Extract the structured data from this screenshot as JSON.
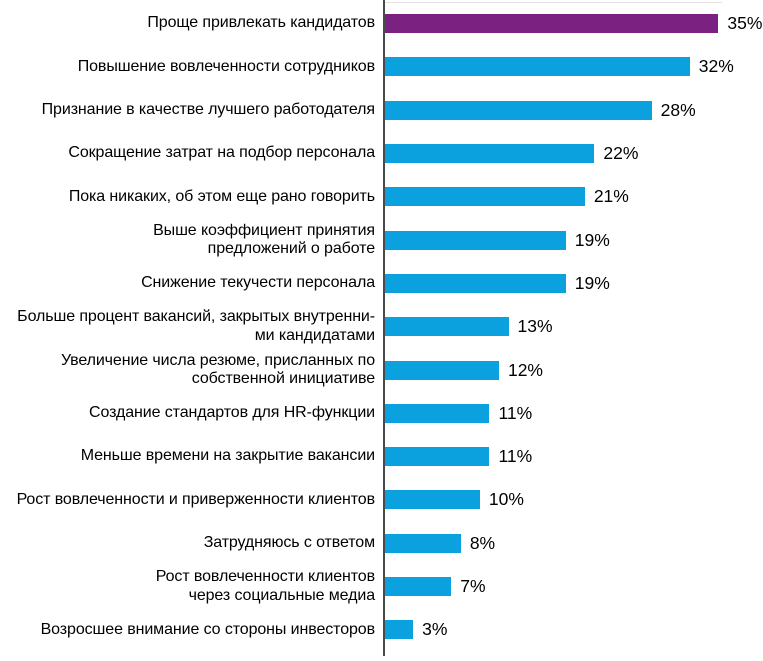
{
  "chart_data": {
    "type": "bar",
    "orientation": "horizontal",
    "title": "",
    "xlabel": "",
    "ylabel": "",
    "grid": false,
    "legend": false,
    "xlim": [
      0,
      36.6
    ],
    "highlight_index": 0,
    "colors": {
      "highlight_bar": "#7B2182",
      "default_bar": "#0AA1DE",
      "axis": "#4A4A4A",
      "text": "#000000",
      "background": "#FFFFFF"
    },
    "categories": [
      "Проще привлекать кандидатов",
      "Повышение вовлеченности сотрудников",
      "Признание в качестве лучшего работодателя",
      "Сокращение затрат на подбор персонала",
      "Пока никаких, об этом еще рано говорить",
      "Выше коэффициент принятия\nпредложений о работе",
      "Снижение текучести персонала",
      "Больше процент вакансий, закрытых внутренни-\nми кандидатами",
      "Увеличение числа резюме, присланных по\nсобственной инициативе",
      "Создание стандартов для HR-функции",
      "Меньше времени на закрытие вакансии",
      "Рост вовлеченности и приверженности клиентов",
      "Затрудняюсь с ответом",
      "Рост вовлеченности клиентов\nчерез социальные медиа",
      "Возросшее внимание со стороны инвесторов"
    ],
    "values": [
      35,
      32,
      28,
      22,
      21,
      19,
      19,
      13,
      12,
      11,
      11,
      10,
      8,
      7,
      3
    ],
    "value_labels": [
      "35%",
      "32%",
      "28%",
      "22%",
      "21%",
      "19%",
      "19%",
      "13%",
      "12%",
      "11%",
      "11%",
      "10%",
      "8%",
      "7%",
      "3%"
    ]
  }
}
